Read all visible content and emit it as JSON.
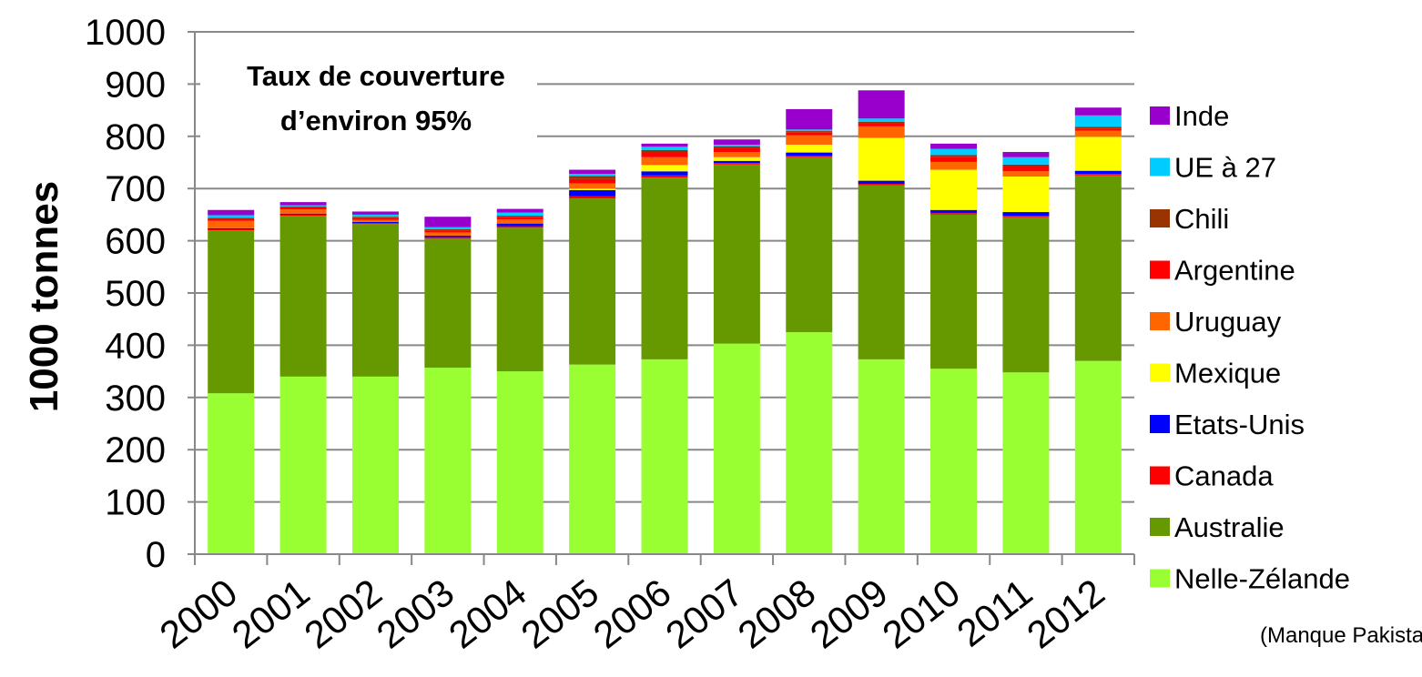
{
  "chart_data": {
    "type": "bar",
    "stacked": true,
    "ylabel": "1000 tonnes",
    "ylim": [
      0,
      1000
    ],
    "yticks": [
      0,
      100,
      200,
      300,
      400,
      500,
      600,
      700,
      800,
      900,
      1000
    ],
    "grid": "horizontal",
    "legend_position": "right",
    "annotation": [
      "Taux de couverture",
      "d’environ 95%"
    ],
    "note": "(Manque Pakistan)",
    "categories": [
      "2000",
      "2001",
      "2002",
      "2003",
      "2004",
      "2005",
      "2006",
      "2007",
      "2008",
      "2009",
      "2010",
      "2011",
      "2012"
    ],
    "series": [
      {
        "name": "Nelle-Zélande",
        "color": "#99ff33",
        "values": [
          308,
          340,
          340,
          357,
          350,
          363,
          373,
          403,
          425,
          373,
          355,
          348,
          370
        ]
      },
      {
        "name": "Australie",
        "color": "#669900",
        "values": [
          312,
          308,
          292,
          247,
          275,
          318,
          348,
          343,
          335,
          333,
          295,
          297,
          355
        ]
      },
      {
        "name": "Canada",
        "color": "#ff0000",
        "values": [
          2,
          2,
          2,
          3,
          3,
          4,
          4,
          3,
          3,
          3,
          3,
          3,
          3
        ]
      },
      {
        "name": "Etats-Unis",
        "color": "#0000ff",
        "values": [
          2,
          2,
          2,
          3,
          5,
          12,
          8,
          4,
          6,
          6,
          6,
          7,
          6
        ]
      },
      {
        "name": "Mexique",
        "color": "#ffff00",
        "values": [
          0,
          0,
          0,
          0,
          0,
          3,
          12,
          7,
          15,
          82,
          77,
          68,
          65
        ]
      },
      {
        "name": "Uruguay",
        "color": "#ff6600",
        "values": [
          14,
          8,
          4,
          6,
          8,
          10,
          15,
          10,
          18,
          22,
          15,
          10,
          12
        ]
      },
      {
        "name": "Argentine",
        "color": "#ff0000",
        "values": [
          4,
          4,
          4,
          4,
          5,
          8,
          10,
          8,
          5,
          6,
          10,
          10,
          4
        ]
      },
      {
        "name": "Chili",
        "color": "#993300",
        "values": [
          2,
          2,
          2,
          2,
          2,
          6,
          4,
          3,
          3,
          3,
          3,
          3,
          3
        ]
      },
      {
        "name": "UE à 27",
        "color": "#00ccff",
        "values": [
          5,
          2,
          4,
          4,
          6,
          4,
          6,
          3,
          3,
          6,
          12,
          14,
          22
        ]
      },
      {
        "name": "Inde",
        "color": "#9900cc",
        "values": [
          10,
          6,
          6,
          20,
          7,
          8,
          6,
          10,
          39,
          54,
          10,
          10,
          15
        ]
      }
    ]
  }
}
